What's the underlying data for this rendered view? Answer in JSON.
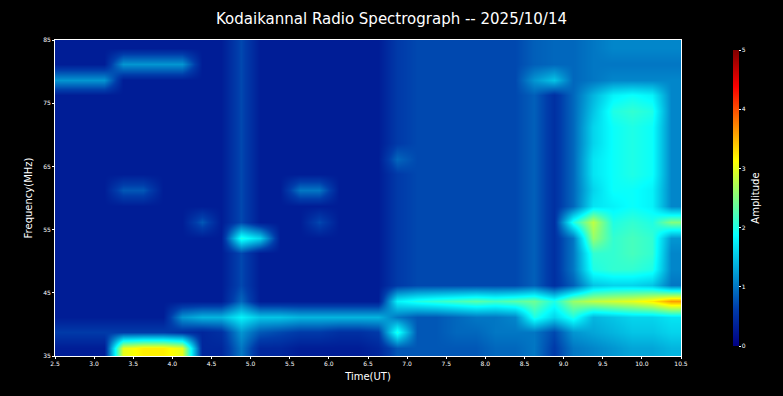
{
  "chart_data": {
    "type": "heatmap",
    "title": "Kodaikannal Radio Spectrograph -- 2025/10/14",
    "x_label": "Time(UT)",
    "y_label": "Frequency(MHz)",
    "color": "Jet",
    "x": [
      2.625,
      2.875,
      3.125,
      3.375,
      3.625,
      3.875,
      4.125,
      4.375,
      4.625,
      4.875,
      5.125,
      5.375,
      5.625,
      5.875,
      6.125,
      6.375,
      6.625,
      6.875,
      7.125,
      7.375,
      7.625,
      7.875,
      8.125,
      8.375,
      8.625,
      8.875,
      9.125,
      9.375,
      9.625,
      9.875,
      10.125,
      10.375
    ],
    "y": [
      36.25,
      38.75,
      41.25,
      43.75,
      46.25,
      48.75,
      51.25,
      53.75,
      56.25,
      58.75,
      61.25,
      63.75,
      66.25,
      68.75,
      71.25,
      73.75,
      76.25,
      78.75,
      81.25,
      83.75
    ],
    "z": [
      [
        0.3,
        0.3,
        0.3,
        3.0,
        3.2,
        3.2,
        3.0,
        0.4,
        0.4,
        1.0,
        0.4,
        0.4,
        0.3,
        0.3,
        0.3,
        0.3,
        0.4,
        0.8,
        0.8,
        0.8,
        0.8,
        0.8,
        0.9,
        0.9,
        1.0,
        0.6,
        1.0,
        1.1,
        1.2,
        1.3,
        1.3,
        1.4
      ],
      [
        0.6,
        0.6,
        0.6,
        0.6,
        0.6,
        0.6,
        0.5,
        0.4,
        0.5,
        1.2,
        0.8,
        0.7,
        0.6,
        0.6,
        0.5,
        0.5,
        0.6,
        2.0,
        0.8,
        0.8,
        0.9,
        0.9,
        1.0,
        1.0,
        1.0,
        0.7,
        1.2,
        1.3,
        1.4,
        1.5,
        1.5,
        1.6
      ],
      [
        0.3,
        0.3,
        0.3,
        0.3,
        0.3,
        0.3,
        1.2,
        1.4,
        1.4,
        1.8,
        1.5,
        1.5,
        1.4,
        1.4,
        1.4,
        1.4,
        1.4,
        1.0,
        0.8,
        0.8,
        0.9,
        1.0,
        1.0,
        1.1,
        2.0,
        1.6,
        2.0,
        1.4,
        1.5,
        1.6,
        1.6,
        1.7
      ],
      [
        0.3,
        0.3,
        0.3,
        0.3,
        0.3,
        0.3,
        0.3,
        0.3,
        0.3,
        0.9,
        0.3,
        0.3,
        0.3,
        0.3,
        0.3,
        0.3,
        0.3,
        1.8,
        2.0,
        2.1,
        2.2,
        2.3,
        2.2,
        2.3,
        2.4,
        2.0,
        2.6,
        2.8,
        2.9,
        3.0,
        3.2,
        3.6
      ],
      [
        0.3,
        0.3,
        0.3,
        0.3,
        0.3,
        0.3,
        0.3,
        0.3,
        0.3,
        0.7,
        0.3,
        0.3,
        0.3,
        0.3,
        0.3,
        0.3,
        0.3,
        0.6,
        0.7,
        0.7,
        0.7,
        0.7,
        0.7,
        0.7,
        0.85,
        0.5,
        0.85,
        1.5,
        1.6,
        1.6,
        1.5,
        1.0
      ],
      [
        0.3,
        0.3,
        0.3,
        0.3,
        0.3,
        0.3,
        0.3,
        0.3,
        0.3,
        0.7,
        0.3,
        0.3,
        0.3,
        0.3,
        0.3,
        0.3,
        0.3,
        0.6,
        0.7,
        0.7,
        0.7,
        0.7,
        0.7,
        0.7,
        0.85,
        0.5,
        1.0,
        2.0,
        2.1,
        2.1,
        2.0,
        1.1
      ],
      [
        0.3,
        0.3,
        0.3,
        0.3,
        0.3,
        0.3,
        0.3,
        0.3,
        0.3,
        0.7,
        0.3,
        0.3,
        0.3,
        0.3,
        0.3,
        0.3,
        0.3,
        0.6,
        0.7,
        0.7,
        0.7,
        0.7,
        0.7,
        0.7,
        0.85,
        0.5,
        1.0,
        2.1,
        2.1,
        2.2,
        2.1,
        1.1
      ],
      [
        0.3,
        0.3,
        0.3,
        0.3,
        0.3,
        0.3,
        0.3,
        0.3,
        0.3,
        2.0,
        1.6,
        0.3,
        0.3,
        0.3,
        0.3,
        0.3,
        0.3,
        0.6,
        0.7,
        0.7,
        0.7,
        0.7,
        0.7,
        0.7,
        0.85,
        0.5,
        1.0,
        2.6,
        2.1,
        2.2,
        2.1,
        1.2
      ],
      [
        0.3,
        0.3,
        0.3,
        0.3,
        0.3,
        0.3,
        0.3,
        0.8,
        0.3,
        0.7,
        0.3,
        0.3,
        0.3,
        0.7,
        0.3,
        0.3,
        0.3,
        0.6,
        0.7,
        0.7,
        0.7,
        0.7,
        0.7,
        0.7,
        0.85,
        0.5,
        2.0,
        2.8,
        2.0,
        2.1,
        2.0,
        2.5
      ],
      [
        0.3,
        0.3,
        0.3,
        0.3,
        0.3,
        0.3,
        0.3,
        0.3,
        0.3,
        0.7,
        0.3,
        0.3,
        0.3,
        0.3,
        0.3,
        0.3,
        0.3,
        0.6,
        0.7,
        0.7,
        0.7,
        0.7,
        0.7,
        0.7,
        0.85,
        0.5,
        0.9,
        1.7,
        1.8,
        1.9,
        1.8,
        1.1
      ],
      [
        0.3,
        0.3,
        0.3,
        0.8,
        0.8,
        0.3,
        0.3,
        0.3,
        0.3,
        0.7,
        0.3,
        0.3,
        1.0,
        1.0,
        0.3,
        0.3,
        0.3,
        0.6,
        0.7,
        0.7,
        0.7,
        0.7,
        0.7,
        0.7,
        0.85,
        0.5,
        0.9,
        1.6,
        1.9,
        1.9,
        1.8,
        1.1
      ],
      [
        0.3,
        0.3,
        0.3,
        0.3,
        0.3,
        0.3,
        0.3,
        0.3,
        0.3,
        0.7,
        0.3,
        0.3,
        0.3,
        0.3,
        0.3,
        0.3,
        0.3,
        0.6,
        0.7,
        0.7,
        0.7,
        0.7,
        0.7,
        0.7,
        0.85,
        0.5,
        0.9,
        1.7,
        1.9,
        2.0,
        1.9,
        1.1
      ],
      [
        0.3,
        0.3,
        0.3,
        0.3,
        0.3,
        0.3,
        0.3,
        0.3,
        0.3,
        0.7,
        0.3,
        0.3,
        0.3,
        0.3,
        0.3,
        0.3,
        0.3,
        0.9,
        0.7,
        0.7,
        0.7,
        0.7,
        0.7,
        0.7,
        0.85,
        0.5,
        0.9,
        1.7,
        1.9,
        2.0,
        1.9,
        1.1
      ],
      [
        0.3,
        0.3,
        0.3,
        0.3,
        0.3,
        0.3,
        0.3,
        0.3,
        0.3,
        0.7,
        0.3,
        0.3,
        0.3,
        0.3,
        0.3,
        0.3,
        0.3,
        0.6,
        0.7,
        0.7,
        0.7,
        0.7,
        0.7,
        0.7,
        0.85,
        0.5,
        0.9,
        1.6,
        1.9,
        2.0,
        1.9,
        1.1
      ],
      [
        0.3,
        0.3,
        0.3,
        0.3,
        0.3,
        0.3,
        0.3,
        0.3,
        0.3,
        0.7,
        0.3,
        0.3,
        0.3,
        0.3,
        0.3,
        0.3,
        0.3,
        0.6,
        0.7,
        0.7,
        0.7,
        0.7,
        0.7,
        0.7,
        0.85,
        0.5,
        0.9,
        1.6,
        1.9,
        2.0,
        1.9,
        1.1
      ],
      [
        0.3,
        0.3,
        0.3,
        0.3,
        0.3,
        0.3,
        0.3,
        0.3,
        0.3,
        0.7,
        0.3,
        0.3,
        0.3,
        0.3,
        0.3,
        0.3,
        0.3,
        0.6,
        0.7,
        0.7,
        0.7,
        0.7,
        0.7,
        0.7,
        0.85,
        0.5,
        0.9,
        1.5,
        2.0,
        2.1,
        2.0,
        1.1
      ],
      [
        0.3,
        0.3,
        0.3,
        0.3,
        0.3,
        0.3,
        0.3,
        0.3,
        0.3,
        0.7,
        0.3,
        0.3,
        0.3,
        0.3,
        0.3,
        0.3,
        0.3,
        0.6,
        0.7,
        0.7,
        0.7,
        0.7,
        0.7,
        0.7,
        0.85,
        0.5,
        0.9,
        1.4,
        1.8,
        1.9,
        1.8,
        1.1
      ],
      [
        1.2,
        1.2,
        1.2,
        0.3,
        0.3,
        0.3,
        0.3,
        0.3,
        0.3,
        0.7,
        0.3,
        0.3,
        0.3,
        0.3,
        0.3,
        0.3,
        0.3,
        0.6,
        0.7,
        0.7,
        0.7,
        0.7,
        0.7,
        0.7,
        1.2,
        1.5,
        0.9,
        1.0,
        1.1,
        1.1,
        1.1,
        1.1
      ],
      [
        0.3,
        0.3,
        0.3,
        1.2,
        1.2,
        1.2,
        1.2,
        0.3,
        0.3,
        0.7,
        0.3,
        0.3,
        0.3,
        0.3,
        0.3,
        0.3,
        0.3,
        0.6,
        0.7,
        0.7,
        0.7,
        0.7,
        0.7,
        0.7,
        0.85,
        0.9,
        0.9,
        1.0,
        1.0,
        1.0,
        1.0,
        1.0
      ],
      [
        0.3,
        0.3,
        0.3,
        0.3,
        0.3,
        0.3,
        0.3,
        0.3,
        0.3,
        0.7,
        0.3,
        0.3,
        0.3,
        0.3,
        0.3,
        0.3,
        0.3,
        0.6,
        0.7,
        0.7,
        0.7,
        0.7,
        0.7,
        0.7,
        0.85,
        0.9,
        0.9,
        1.0,
        1.1,
        1.1,
        1.1,
        1.1
      ]
    ],
    "xlim": [
      2.5,
      10.5
    ],
    "ylim": [
      35,
      85
    ],
    "xticks": [
      2.5,
      {
        "value": 3,
        "label": "3.0"
      },
      3.5,
      {
        "value": 4,
        "label": "4.0"
      },
      4.5,
      {
        "value": 5,
        "label": "5.0"
      },
      5.5,
      {
        "value": 6,
        "label": "6.0"
      },
      6.5,
      {
        "value": 7,
        "label": "7.0"
      },
      7.5,
      {
        "value": 8,
        "label": "8.0"
      },
      8.5,
      {
        "value": 9,
        "label": "9.0"
      },
      9.5,
      {
        "value": 10,
        "label": "10.0"
      },
      10.5
    ],
    "yticks": [
      35,
      45,
      55,
      65,
      75,
      85
    ],
    "colorbar": {
      "title": "Amplitude",
      "range": [
        0,
        5
      ],
      "ticks": [
        0,
        1,
        2,
        3,
        4,
        5
      ]
    }
  }
}
